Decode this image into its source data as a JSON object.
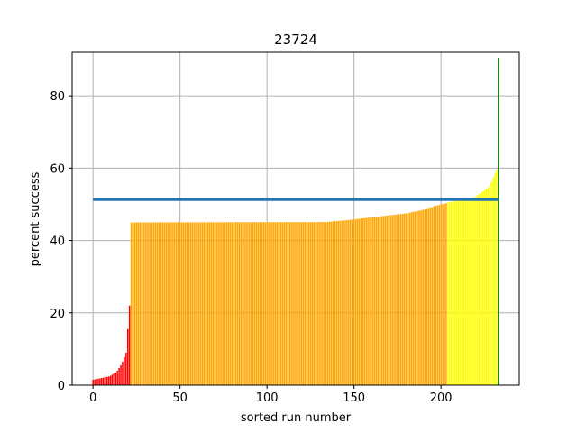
{
  "chart_data": {
    "type": "bar",
    "title": "23724",
    "xlabel": "sorted run number",
    "ylabel": "percent success",
    "xlim": [
      -12,
      245
    ],
    "ylim": [
      0,
      92
    ],
    "xticks": [
      0,
      50,
      100,
      150,
      200
    ],
    "yticks": [
      0,
      20,
      40,
      60,
      80
    ],
    "grid": true,
    "reference_line": {
      "value": 51.3,
      "x_start": 0,
      "x_end": 233,
      "color": "#1f77b4"
    },
    "colors": {
      "red": "#ff0000",
      "orange": "#ffa500",
      "yellow": "#ffff00",
      "green": "#008000"
    },
    "bar_segments": [
      {
        "from": 0,
        "to": 4,
        "color": "red",
        "y_start": 1.5,
        "y_end": 1.9
      },
      {
        "from": 5,
        "to": 9,
        "color": "red",
        "y_start": 2.0,
        "y_end": 2.4
      },
      {
        "from": 10,
        "to": 13,
        "color": "red",
        "y_start": 2.6,
        "y_end": 3.5
      },
      {
        "from": 14,
        "to": 16,
        "color": "red",
        "y_start": 4.0,
        "y_end": 5.5
      },
      {
        "from": 17,
        "to": 19,
        "color": "red",
        "y_start": 6.5,
        "y_end": 9.0
      },
      {
        "from": 20,
        "to": 20,
        "color": "red",
        "y_start": 15.5,
        "y_end": 15.5
      },
      {
        "from": 21,
        "to": 21,
        "color": "red",
        "y_start": 22.0,
        "y_end": 22.0
      },
      {
        "from": 22,
        "to": 135,
        "color": "orange",
        "y_start": 45.0,
        "y_end": 45.1
      },
      {
        "from": 136,
        "to": 150,
        "color": "orange",
        "y_start": 45.2,
        "y_end": 45.8
      },
      {
        "from": 151,
        "to": 180,
        "color": "orange",
        "y_start": 45.9,
        "y_end": 47.5
      },
      {
        "from": 181,
        "to": 195,
        "color": "orange",
        "y_start": 47.6,
        "y_end": 49.0
      },
      {
        "from": 196,
        "to": 203,
        "color": "orange",
        "y_start": 49.5,
        "y_end": 50.3
      },
      {
        "from": 204,
        "to": 220,
        "color": "yellow",
        "y_start": 50.5,
        "y_end": 52.0
      },
      {
        "from": 221,
        "to": 227,
        "color": "yellow",
        "y_start": 52.5,
        "y_end": 54.5
      },
      {
        "from": 228,
        "to": 231,
        "color": "yellow",
        "y_start": 55.0,
        "y_end": 58.5
      },
      {
        "from": 232,
        "to": 232,
        "color": "yellow",
        "y_start": 59.5,
        "y_end": 59.5
      },
      {
        "from": 233,
        "to": 233,
        "color": "green",
        "y_start": 90.5,
        "y_end": 90.5
      }
    ]
  }
}
